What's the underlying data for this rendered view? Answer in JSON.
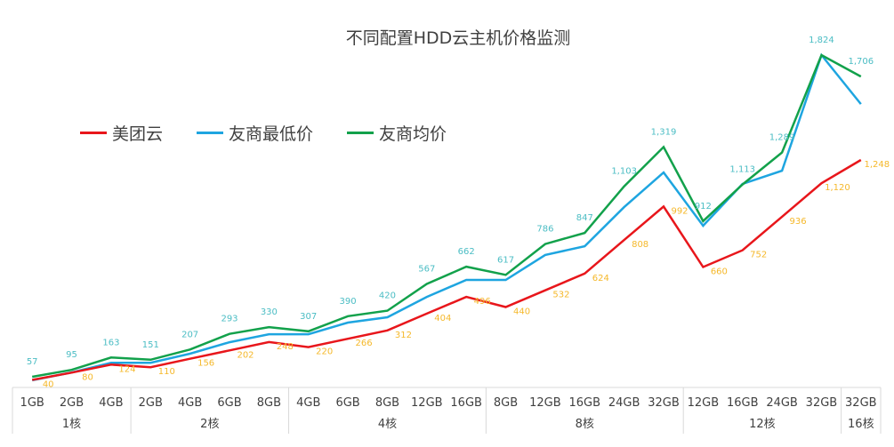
{
  "chart_data": {
    "type": "line",
    "title": "不同配置HDD云主机价格监测",
    "legend_position": "top-left",
    "grid": false,
    "categories": [
      "1GB",
      "2GB",
      "4GB",
      "2GB",
      "4GB",
      "6GB",
      "8GB",
      "4GB",
      "6GB",
      "8GB",
      "12GB",
      "16GB",
      "8GB",
      "12GB",
      "16GB",
      "24GB",
      "32GB",
      "12GB",
      "16GB",
      "24GB",
      "32GB",
      "32GB"
    ],
    "groups": [
      {
        "label": "1核",
        "count": 3
      },
      {
        "label": "2核",
        "count": 4
      },
      {
        "label": "4核",
        "count": 5
      },
      {
        "label": "8核",
        "count": 5
      },
      {
        "label": "12核",
        "count": 4
      },
      {
        "label": "16核",
        "count": 1
      }
    ],
    "ylim": [
      0,
      2000
    ],
    "series": [
      {
        "name": "美团云",
        "color": "#e8161b",
        "values": [
          40,
          80,
          124,
          110,
          156,
          202,
          248,
          220,
          266,
          312,
          404,
          496,
          440,
          532,
          624,
          808,
          992,
          660,
          752,
          936,
          1120,
          1248
        ],
        "labeled": true,
        "label_color": "#f5b82a"
      },
      {
        "name": "友商最低价",
        "color": "#1ea5e0",
        "values": [
          38,
          81,
          134,
          134,
          184,
          247,
          291,
          291,
          355,
          384,
          496,
          589,
          589,
          726,
          774,
          989,
          1179,
          887,
          1116,
          1189,
          1824,
          1555
        ],
        "labeled": false
      },
      {
        "name": "友商均价",
        "color": "#12a14b",
        "values": [
          57,
          95,
          163,
          151,
          207,
          293,
          330,
          307,
          390,
          420,
          567,
          662,
          617,
          786,
          847,
          1103,
          1319,
          912,
          1113,
          1289,
          1824,
          1706
        ],
        "labeled": true,
        "label_color": "#4bbdc4"
      }
    ]
  }
}
